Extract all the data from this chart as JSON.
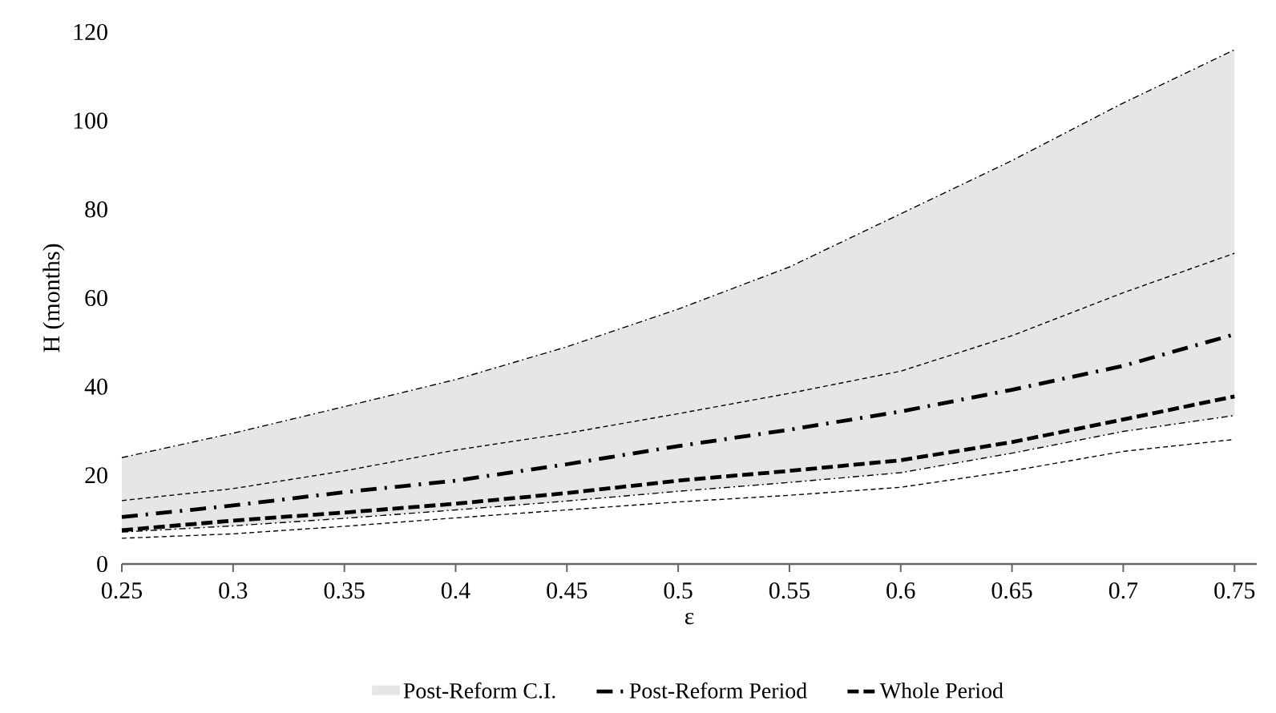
{
  "chart_data": {
    "type": "line",
    "xlabel": "ε",
    "ylabel": "H (months)",
    "x": [
      0.25,
      0.3,
      0.35,
      0.4,
      0.45,
      0.5,
      0.55,
      0.6,
      0.65,
      0.7,
      0.75
    ],
    "series": [
      {
        "name": "Post-Reform Period",
        "color": "#000000",
        "line_style": "dashdot",
        "values": [
          10.6,
          13.2,
          16.2,
          18.8,
          22.5,
          26.6,
          30.3,
          34.4,
          39.3,
          44.7,
          51.8
        ],
        "lower": [
          7.2,
          8.6,
          10.3,
          12.2,
          14.2,
          16.4,
          18.4,
          20.6,
          25,
          29.9,
          33.5
        ],
        "upper": [
          24,
          29.5,
          35.5,
          41.6,
          49,
          57.5,
          67,
          79,
          91,
          104,
          116
        ]
      },
      {
        "type": "line",
        "color": "#000000",
        "line_style": "dashdot",
        "values": [
          24,
          29.5,
          35.5,
          41.6,
          49,
          57.5,
          67,
          79,
          91,
          104,
          116
        ]
      },
      {
        "type": "line",
        "color": "#000000",
        "line_style": "dashdot",
        "values": [
          7.2,
          8.6,
          10.3,
          12.2,
          14.2,
          16.4,
          18.4,
          20.6,
          25,
          29.9,
          33.5
        ]
      },
      {
        "name": "Whole Period",
        "color": "#000000",
        "line_style": "dashed",
        "values": [
          7.6,
          9.8,
          11.6,
          13.6,
          16,
          18.8,
          21,
          23.4,
          27.5,
          32.6,
          37.8
        ]
      },
      {
        "type": "line",
        "color": "#000000",
        "line_style": "dashed",
        "values": [
          14.3,
          17,
          21,
          25.7,
          29.5,
          33.9,
          38.5,
          43.5,
          51.5,
          61.2,
          70.1
        ]
      },
      {
        "type": "line",
        "color": "#000000",
        "line_style": "dashed",
        "values": [
          5.8,
          6.8,
          8.5,
          10.4,
          12.2,
          14,
          15.5,
          17.3,
          21,
          25.4,
          28.1
        ]
      }
    ],
    "xlim": [
      0.25,
      0.76
    ],
    "ylim": [
      0,
      120
    ],
    "xticks": [
      0.25,
      0.3,
      0.35,
      0.4,
      0.45,
      0.5,
      0.55,
      0.6,
      0.65,
      0.7,
      0.75
    ],
    "yticks": [
      0,
      20,
      40,
      60,
      80,
      100,
      120
    ],
    "annotations": [
      "Post-Reform C.I."
    ],
    "grid": false,
    "legend": "bottom"
  }
}
